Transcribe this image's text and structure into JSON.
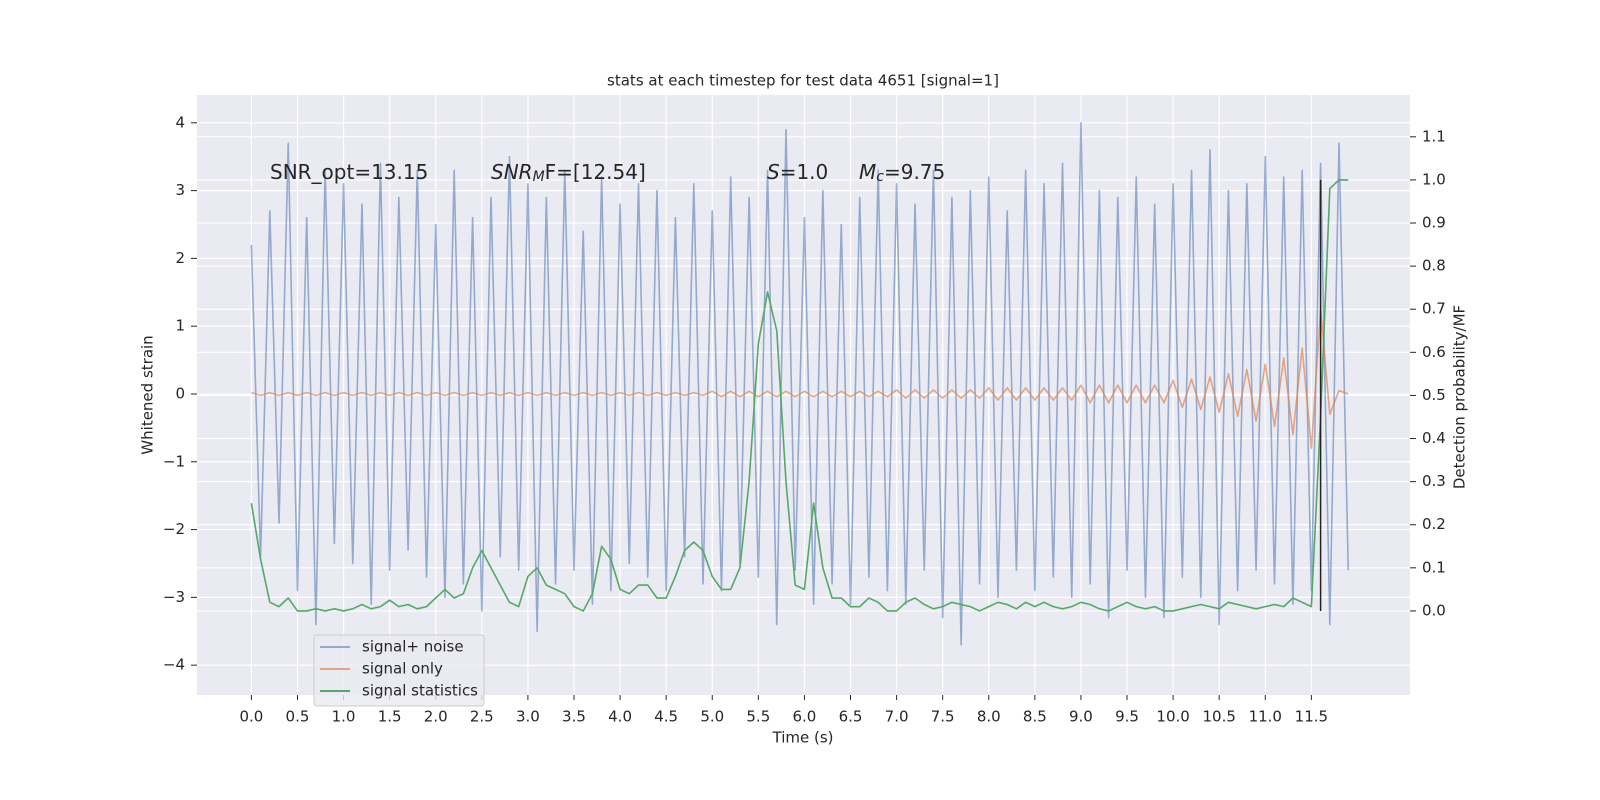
{
  "chart_data": {
    "type": "line",
    "title": "stats at each timestep for test data 4651 [signal=1]",
    "x_label": "Time (s)",
    "y_label": "Whitened strain",
    "y2_label": "Detection probability/MF",
    "x": [
      0,
      0.1,
      0.2,
      0.3,
      0.4,
      0.5,
      0.6,
      0.7,
      0.8,
      0.9,
      1,
      1.1,
      1.2,
      1.3,
      1.4,
      1.5,
      1.6,
      1.7,
      1.8,
      1.9,
      2,
      2.1,
      2.2,
      2.3,
      2.4,
      2.5,
      2.6,
      2.7,
      2.8,
      2.9,
      3,
      3.1,
      3.2,
      3.3,
      3.4,
      3.5,
      3.6,
      3.7,
      3.8,
      3.9,
      4,
      4.1,
      4.2,
      4.3,
      4.4,
      4.5,
      4.6,
      4.7,
      4.8,
      4.9,
      5,
      5.1,
      5.2,
      5.3,
      5.4,
      5.5,
      5.6,
      5.7,
      5.8,
      5.9,
      6,
      6.1,
      6.2,
      6.3,
      6.4,
      6.5,
      6.6,
      6.7,
      6.8,
      6.9,
      7,
      7.1,
      7.2,
      7.3,
      7.4,
      7.5,
      7.6,
      7.7,
      7.8,
      7.9,
      8,
      8.1,
      8.2,
      8.3,
      8.4,
      8.5,
      8.6,
      8.7,
      8.8,
      8.9,
      9,
      9.1,
      9.2,
      9.3,
      9.4,
      9.5,
      9.6,
      9.7,
      9.8,
      9.9,
      10,
      10.1,
      10.2,
      10.3,
      10.4,
      10.5,
      10.6,
      10.7,
      10.8,
      10.9,
      11,
      11.1,
      11.2,
      11.3,
      11.4,
      11.5,
      11.6,
      11.7,
      11.8,
      11.9
    ],
    "series": [
      {
        "name": "signal+ noise",
        "color": "#4c72b0",
        "opacity": 0.55,
        "values": [
          2.2,
          -2.4,
          2.7,
          -1.9,
          3.7,
          -2.9,
          2.6,
          -3.4,
          3.3,
          -2.2,
          3.1,
          -2.5,
          2.8,
          -3.1,
          3.4,
          -2.6,
          2.9,
          -2.3,
          3.3,
          -2.7,
          2.5,
          -3.0,
          3.3,
          -2.8,
          2.6,
          -3.2,
          2.9,
          -2.4,
          3.5,
          -2.6,
          3.1,
          -3.5,
          2.9,
          -2.8,
          3.3,
          -2.6,
          2.4,
          -3.1,
          3.2,
          -2.9,
          2.8,
          -2.5,
          3.1,
          -2.7,
          3.0,
          -2.9,
          2.6,
          -2.4,
          3.1,
          -2.8,
          2.7,
          -2.9,
          3.2,
          -2.5,
          2.9,
          -2.7,
          3.3,
          -3.4,
          3.9,
          -2.6,
          2.6,
          -3.1,
          3.0,
          -2.8,
          2.5,
          -3.1,
          2.9,
          -2.7,
          3.3,
          -2.9,
          3.1,
          -3.1,
          2.8,
          -2.6,
          3.3,
          -3.3,
          2.9,
          -3.7,
          3.0,
          -2.8,
          3.2,
          -3.0,
          2.7,
          -2.6,
          3.3,
          -2.9,
          3.1,
          -2.7,
          3.4,
          -3.0,
          4.0,
          -2.8,
          3.0,
          -3.3,
          2.9,
          -2.6,
          3.2,
          -3.0,
          2.8,
          -3.3,
          3.1,
          -2.7,
          3.3,
          -3.0,
          3.6,
          -3.4,
          3.0,
          -2.9,
          3.1,
          -2.6,
          3.5,
          -2.8,
          3.2,
          -3.1,
          3.3,
          -2.9,
          3.4,
          -3.4,
          3.7,
          -2.6
        ]
      },
      {
        "name": "signal only",
        "color": "#dd8452",
        "opacity": 0.7,
        "values": [
          0.02,
          -0.02,
          0.02,
          -0.02,
          0.02,
          -0.02,
          0.02,
          -0.02,
          0.02,
          -0.02,
          0.02,
          -0.02,
          0.02,
          -0.02,
          0.02,
          -0.02,
          0.02,
          -0.02,
          0.02,
          -0.02,
          0.02,
          -0.02,
          0.02,
          -0.02,
          0.02,
          -0.02,
          0.02,
          -0.02,
          0.02,
          -0.02,
          0.02,
          -0.02,
          0.02,
          -0.02,
          0.02,
          -0.02,
          0.02,
          -0.02,
          0.02,
          -0.02,
          0.02,
          -0.02,
          0.02,
          -0.02,
          0.02,
          -0.02,
          0.02,
          -0.02,
          0.02,
          -0.02,
          0.04,
          -0.04,
          0.04,
          -0.04,
          0.04,
          -0.04,
          0.04,
          -0.04,
          0.04,
          -0.04,
          0.04,
          -0.04,
          0.04,
          -0.04,
          0.04,
          -0.04,
          0.04,
          -0.04,
          0.04,
          -0.04,
          0.06,
          -0.06,
          0.06,
          -0.06,
          0.06,
          -0.06,
          0.06,
          -0.06,
          0.06,
          -0.06,
          0.09,
          -0.09,
          0.09,
          -0.09,
          0.09,
          -0.09,
          0.09,
          -0.09,
          0.09,
          -0.09,
          0.13,
          -0.13,
          0.13,
          -0.13,
          0.13,
          -0.13,
          0.13,
          -0.13,
          0.13,
          -0.13,
          0.2,
          -0.2,
          0.22,
          -0.23,
          0.25,
          -0.27,
          0.3,
          -0.33,
          0.36,
          -0.4,
          0.44,
          -0.48,
          0.53,
          -0.6,
          0.68,
          -0.8,
          1.25,
          -0.3,
          0.05,
          0.0
        ]
      },
      {
        "name": "signal statistics",
        "color": "#55a868",
        "opacity": 1,
        "axis": "y2",
        "values": [
          0.25,
          0.12,
          0.02,
          0.01,
          0.03,
          0.0,
          0.0,
          0.005,
          0.0,
          0.005,
          0.0,
          0.005,
          0.015,
          0.005,
          0.01,
          0.025,
          0.01,
          0.015,
          0.005,
          0.01,
          0.03,
          0.05,
          0.03,
          0.04,
          0.1,
          0.14,
          0.1,
          0.06,
          0.02,
          0.01,
          0.08,
          0.1,
          0.06,
          0.05,
          0.04,
          0.01,
          0.0,
          0.04,
          0.15,
          0.12,
          0.05,
          0.04,
          0.06,
          0.06,
          0.03,
          0.03,
          0.08,
          0.14,
          0.16,
          0.14,
          0.08,
          0.05,
          0.05,
          0.1,
          0.3,
          0.62,
          0.74,
          0.65,
          0.3,
          0.06,
          0.05,
          0.25,
          0.1,
          0.03,
          0.03,
          0.01,
          0.01,
          0.03,
          0.02,
          0.0,
          0.0,
          0.02,
          0.03,
          0.015,
          0.005,
          0.01,
          0.02,
          0.015,
          0.01,
          0.0,
          0.01,
          0.02,
          0.015,
          0.005,
          0.02,
          0.01,
          0.02,
          0.01,
          0.005,
          0.01,
          0.02,
          0.015,
          0.005,
          0.0,
          0.01,
          0.02,
          0.01,
          0.005,
          0.01,
          0.0,
          0.0,
          0.005,
          0.01,
          0.015,
          0.01,
          0.005,
          0.02,
          0.015,
          0.01,
          0.005,
          0.01,
          0.015,
          0.01,
          0.03,
          0.02,
          0.01,
          0.45,
          0.98,
          1.0,
          1.0
        ]
      }
    ],
    "vline": {
      "x": 11.6,
      "ymin": 0,
      "ymax": 1,
      "color": "#222222"
    },
    "xlim": [
      -0.59,
      12.57
    ],
    "ylim": [
      -4.44,
      4.41
    ],
    "y2lim": [
      -0.195,
      1.197
    ],
    "xticks": [
      {
        "value": 0,
        "label": "0.0"
      },
      0.5,
      {
        "value": 1,
        "label": "1.0"
      },
      1.5,
      {
        "value": 2,
        "label": "2.0"
      },
      2.5,
      {
        "value": 3,
        "label": "3.0"
      },
      3.5,
      {
        "value": 4,
        "label": "4.0"
      },
      4.5,
      {
        "value": 5,
        "label": "5.0"
      },
      5.5,
      {
        "value": 6,
        "label": "6.0"
      },
      6.5,
      {
        "value": 7,
        "label": "7.0"
      },
      7.5,
      {
        "value": 8,
        "label": "8.0"
      },
      8.5,
      {
        "value": 9,
        "label": "9.0"
      },
      9.5,
      {
        "value": 10,
        "label": "10.0"
      },
      10.5,
      {
        "value": 11,
        "label": "11.0"
      },
      11.5
    ],
    "yticks": [
      4,
      3,
      2,
      1,
      0,
      {
        "value": -1,
        "label": "−1"
      },
      {
        "value": -2,
        "label": "−2"
      },
      {
        "value": -3,
        "label": "−3"
      },
      {
        "value": -4,
        "label": "−4"
      }
    ],
    "y2ticks": [
      {
        "value": 0,
        "label": "0.0"
      },
      0.1,
      0.2,
      0.3,
      0.4,
      0.5,
      0.6,
      0.7,
      0.8,
      0.9,
      {
        "value": 1,
        "label": "1.0"
      },
      1.1
    ],
    "grid": true,
    "legend": "lower left",
    "annotations": [
      [
        {
          "text": "SNR_opt=13.15"
        }
      ],
      [
        {
          "text": "SNR",
          "italic": true
        },
        {
          "text": "M",
          "italic": true,
          "sub": true
        },
        {
          "text": "F=[12.54]"
        }
      ],
      [
        {
          "text": "S",
          "italic": true
        },
        {
          "text": "=1.0"
        }
      ],
      [
        {
          "text": "M",
          "italic": true
        },
        {
          "text": "c",
          "italic": true,
          "sub": true
        },
        {
          "text": "=9.75"
        }
      ]
    ]
  }
}
